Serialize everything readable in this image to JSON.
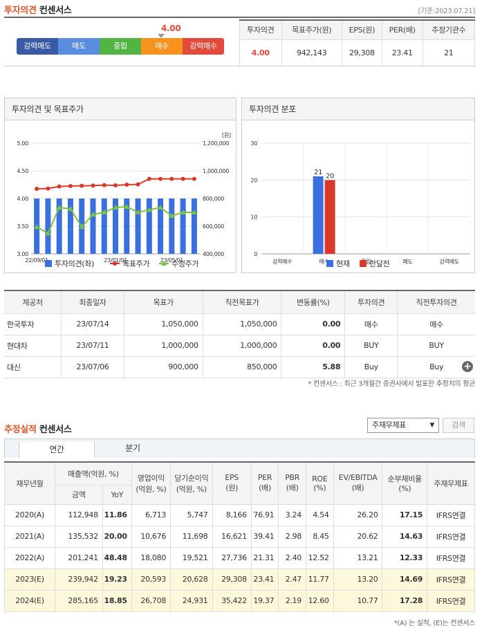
{
  "consensus": {
    "title_hl": "투자의견",
    "title_rest": "컨센서스",
    "base_date": "[기준:2023.07.21]",
    "current_value": "4.00",
    "scale": [
      {
        "label": "강력매도",
        "color": "#3a5aa8"
      },
      {
        "label": "매도",
        "color": "#5a8de0"
      },
      {
        "label": "중립",
        "color": "#52b443"
      },
      {
        "label": "매수",
        "color": "#f7921e"
      },
      {
        "label": "강력매수",
        "color": "#e24a3b"
      }
    ],
    "summary_headers": [
      "투자의견",
      "목표주가(원)",
      "EPS(원)",
      "PER(배)",
      "추정기관수"
    ],
    "summary_values": [
      "4.00",
      "942,143",
      "29,308",
      "23.41",
      "21"
    ]
  },
  "chart1": {
    "panel_title": "투자의견 및 목표주가",
    "unit": "[원]",
    "legend": [
      "투자의견(좌)",
      "목표주가",
      "수정주가"
    ],
    "colors": {
      "bar": "#3a6fe0",
      "target": "#d9392b",
      "price": "#7cc242"
    },
    "chart_data": {
      "type": "bar+line",
      "x_ticks": [
        "22/09/01",
        "23/01/01",
        "23/05/01"
      ],
      "y_left_ticks": [
        "5.00",
        "4.50",
        "4.00",
        "3.50",
        "3.00"
      ],
      "y_right_ticks": [
        "1,200,000",
        "1,000,000",
        "800,000",
        "600,000",
        "400,000"
      ],
      "ylim_left": [
        3.0,
        5.0
      ],
      "ylim_right": [
        400000,
        1200000
      ],
      "opinion": [
        4,
        4,
        4,
        4,
        4,
        4,
        4,
        4,
        4,
        4,
        4,
        4,
        4,
        4,
        4
      ],
      "target_price": [
        870000,
        872000,
        887000,
        890000,
        892000,
        893000,
        897000,
        895000,
        900000,
        902000,
        942000,
        942000,
        942000,
        942000,
        942000
      ],
      "adjusted_price": [
        595000,
        548000,
        735000,
        725000,
        595000,
        685000,
        700000,
        735000,
        740000,
        700000,
        718000,
        735000,
        675000,
        700000,
        700000
      ]
    }
  },
  "chart2": {
    "panel_title": "투자의견 분포",
    "legend": [
      "현재",
      "한달전"
    ],
    "colors": {
      "current": "#3a6fe0",
      "prev": "#d9392b"
    },
    "chart_data": {
      "type": "bar",
      "categories": [
        "강력매수",
        "매수",
        "중립",
        "매도",
        "강력매도"
      ],
      "series": [
        {
          "name": "현재",
          "values": [
            0,
            21,
            0,
            0,
            0
          ]
        },
        {
          "name": "한달전",
          "values": [
            0,
            20,
            0,
            0,
            0
          ]
        }
      ],
      "y_ticks": [
        "30",
        "20",
        "10",
        "0"
      ],
      "ylim": [
        0,
        30
      ],
      "value_labels": [
        "21",
        "20"
      ]
    }
  },
  "brokers": {
    "headers": [
      "제공처",
      "최종일자",
      "목표가",
      "직전목표가",
      "변동률(%)",
      "투자의견",
      "직전투자의견"
    ],
    "rows": [
      [
        "한국투자",
        "23/07/14",
        "1,050,000",
        "1,050,000",
        "0.00",
        "매수",
        "매수"
      ],
      [
        "현대차",
        "23/07/11",
        "1,000,000",
        "1,000,000",
        "0.00",
        "BUY",
        "BUY"
      ],
      [
        "대신",
        "23/07/06",
        "900,000",
        "850,000",
        "5.88",
        "Buy",
        "Buy"
      ]
    ],
    "note": "* 컨센서스 : 최근 3개월간 증권사에서 발표한 추정치의 평균"
  },
  "estimates": {
    "title_hl": "추정실적",
    "title_rest": "컨센서스",
    "select_value": "주재무제표",
    "search_label": "검색",
    "tabs": [
      "연간",
      "분기"
    ],
    "headers": {
      "period": "재무년월",
      "sales": "매출액(억원, %)",
      "sales_amt": "금액",
      "sales_yoy": "YoY",
      "op": "영업이익",
      "op_unit": "(억원, %)",
      "ni": "당기순이익",
      "ni_unit": "(억원, %)",
      "eps": "EPS",
      "eps_unit": "(원)",
      "per": "PER",
      "per_unit": "(배)",
      "pbr": "PBR",
      "pbr_unit": "(배)",
      "roe": "ROE",
      "roe_unit": "(%)",
      "ev": "EV/EBITDA",
      "ev_unit": "(배)",
      "debt": "순부채비율",
      "debt_unit": "(%)",
      "fs": "주재무제표"
    },
    "rows": [
      [
        "2020(A)",
        "112,948",
        "11.86",
        "6,713",
        "5,747",
        "8,166",
        "76.91",
        "3.24",
        "4.54",
        "26.20",
        "17.15",
        "IFRS연결"
      ],
      [
        "2021(A)",
        "135,532",
        "20.00",
        "10,676",
        "11,698",
        "16,621",
        "39.41",
        "2.98",
        "8.45",
        "20.62",
        "14.63",
        "IFRS연결"
      ],
      [
        "2022(A)",
        "201,241",
        "48.48",
        "18,080",
        "19,521",
        "27,736",
        "21.31",
        "2.40",
        "12.52",
        "13.21",
        "12.33",
        "IFRS연결"
      ],
      [
        "2023(E)",
        "239,942",
        "19.23",
        "20,593",
        "20,628",
        "29,308",
        "23.41",
        "2.47",
        "11.77",
        "13.20",
        "14.69",
        "IFRS연결"
      ],
      [
        "2024(E)",
        "285,165",
        "18.85",
        "26,708",
        "24,931",
        "35,422",
        "19.37",
        "2.19",
        "12.60",
        "10.77",
        "17.28",
        "IFRS연결"
      ]
    ],
    "note": "*(A) 는 실적, (E)는 컨센서스"
  }
}
